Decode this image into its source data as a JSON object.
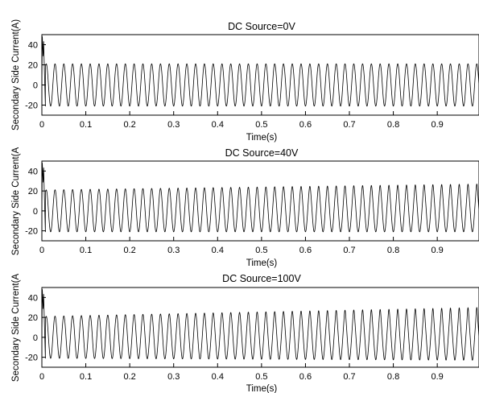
{
  "chart_data": [
    {
      "type": "line",
      "title": "DC Source=0V",
      "xlabel": "Time(s)",
      "ylabel": "Secondary Side Current(A)",
      "xlim": [
        0,
        0.995
      ],
      "ylim": [
        -30,
        50
      ],
      "xticks": [
        0,
        0.1,
        0.2,
        0.3,
        0.4,
        0.5,
        0.6,
        0.7,
        0.8,
        0.9
      ],
      "xtick_labels": [
        "0",
        "0.1",
        "0.2",
        "0.3",
        "0.4",
        "0.5",
        "0.6",
        "0.7",
        "0.8",
        "0.9"
      ],
      "yticks": [
        -20,
        0,
        20,
        40
      ],
      "ytick_labels": [
        "-20",
        "0",
        "20",
        "40"
      ],
      "series": [
        {
          "frequency_hz": 50,
          "amplitude_a": 21,
          "peak_growth_a": 0,
          "trough_growth_a": 0,
          "inrush_peak_a": 48,
          "inrush_duration_s": 0.008
        }
      ]
    },
    {
      "type": "line",
      "title": "DC Source=40V",
      "xlabel": "Time(s)",
      "ylabel": "Secondary Side Current(A",
      "xlim": [
        0,
        0.995
      ],
      "ylim": [
        -30,
        50
      ],
      "xticks": [
        0,
        0.1,
        0.2,
        0.3,
        0.4,
        0.5,
        0.6,
        0.7,
        0.8,
        0.9
      ],
      "xtick_labels": [
        "0",
        "0.1",
        "0.2",
        "0.3",
        "0.4",
        "0.5",
        "0.6",
        "0.7",
        "0.8",
        "0.9"
      ],
      "yticks": [
        -20,
        0,
        20,
        40
      ],
      "ytick_labels": [
        "-20",
        "0",
        "20",
        "40"
      ],
      "series": [
        {
          "frequency_hz": 50,
          "amplitude_a": 21,
          "peak_growth_a": 6,
          "trough_growth_a": 0,
          "inrush_peak_a": 48,
          "inrush_duration_s": 0.008
        }
      ]
    },
    {
      "type": "line",
      "title": "DC Source=100V",
      "xlabel": "Time(s)",
      "ylabel": "Secondary Side Current(A",
      "xlim": [
        0,
        0.995
      ],
      "ylim": [
        -30,
        50
      ],
      "xticks": [
        0,
        0.1,
        0.2,
        0.3,
        0.4,
        0.5,
        0.6,
        0.7,
        0.8,
        0.9
      ],
      "xtick_labels": [
        "0",
        "0.1",
        "0.2",
        "0.3",
        "0.4",
        "0.5",
        "0.6",
        "0.7",
        "0.8",
        "0.9"
      ],
      "yticks": [
        -20,
        0,
        20,
        40
      ],
      "ytick_labels": [
        "-20",
        "0",
        "20",
        "40"
      ],
      "series": [
        {
          "frequency_hz": 50,
          "amplitude_a": 21,
          "peak_growth_a": 9,
          "trough_growth_a": 2,
          "inrush_peak_a": 48,
          "inrush_duration_s": 0.008
        }
      ]
    }
  ]
}
